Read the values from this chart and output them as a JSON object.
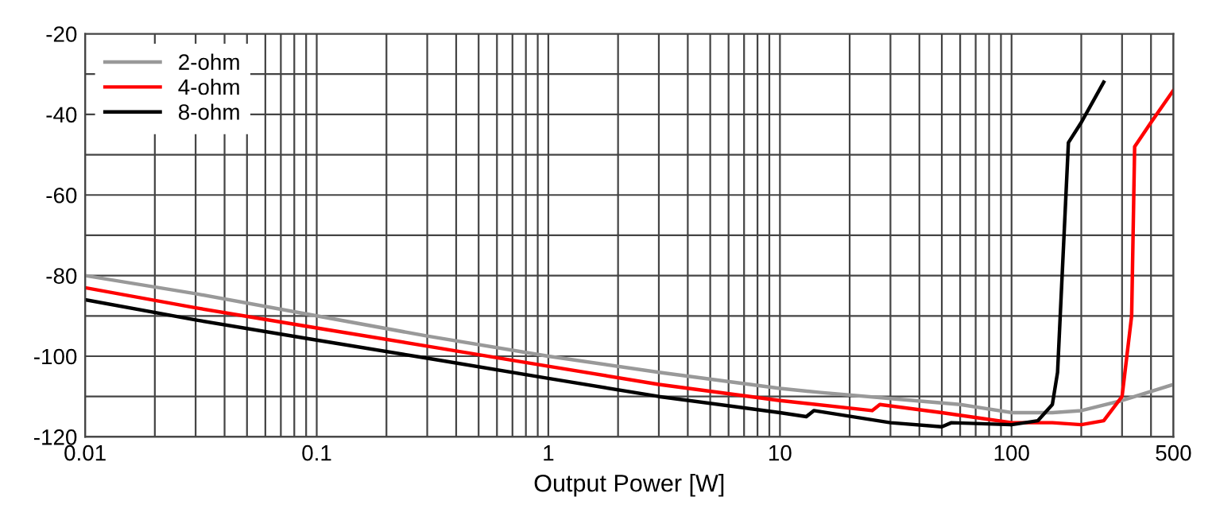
{
  "chart_data": {
    "type": "line",
    "xlabel": "Output Power [W]",
    "log": "x",
    "grid": true,
    "legend": "top left",
    "xlim": [
      0.01,
      500
    ],
    "ylim": [
      -120,
      -20
    ],
    "xticks": [
      0.01,
      {
        "value": 0.02,
        "label": null
      },
      {
        "value": 0.03,
        "label": null
      },
      {
        "value": 0.04,
        "label": null
      },
      {
        "value": 0.05,
        "label": null
      },
      {
        "value": 0.06,
        "label": null
      },
      {
        "value": 0.07,
        "label": null
      },
      {
        "value": 0.08,
        "label": null
      },
      {
        "value": 0.09,
        "label": null
      },
      0.1,
      {
        "value": 0.2,
        "label": null
      },
      {
        "value": 0.3,
        "label": null
      },
      {
        "value": 0.4,
        "label": null
      },
      {
        "value": 0.5,
        "label": null
      },
      {
        "value": 0.6,
        "label": null
      },
      {
        "value": 0.7,
        "label": null
      },
      {
        "value": 0.8,
        "label": null
      },
      {
        "value": 0.9,
        "label": null
      },
      1,
      {
        "value": 2,
        "label": null
      },
      {
        "value": 3,
        "label": null
      },
      {
        "value": 4,
        "label": null
      },
      {
        "value": 5,
        "label": null
      },
      {
        "value": 6,
        "label": null
      },
      {
        "value": 7,
        "label": null
      },
      {
        "value": 8,
        "label": null
      },
      {
        "value": 9,
        "label": null
      },
      10,
      {
        "value": 20,
        "label": null
      },
      {
        "value": 30,
        "label": null
      },
      {
        "value": 40,
        "label": null
      },
      {
        "value": 50,
        "label": null
      },
      {
        "value": 60,
        "label": null
      },
      {
        "value": 70,
        "label": null
      },
      {
        "value": 80,
        "label": null
      },
      {
        "value": 90,
        "label": null
      },
      100,
      {
        "value": 200,
        "label": null
      },
      {
        "value": 300,
        "label": null
      },
      {
        "value": 400,
        "label": null
      },
      500
    ],
    "yticks": [
      -120,
      {
        "value": -110,
        "label": null
      },
      -100,
      {
        "value": -90,
        "label": null
      },
      -80,
      {
        "value": -70,
        "label": null
      },
      -60,
      {
        "value": -50,
        "label": null
      },
      -40,
      {
        "value": -30,
        "label": null
      },
      -20
    ],
    "series": [
      {
        "name": "2-ohm",
        "color": "#999999",
        "x": [
          0.01,
          0.03,
          0.1,
          0.3,
          1,
          3,
          10,
          15,
          30,
          60,
          100,
          150,
          200,
          300,
          500
        ],
        "values": [
          -80,
          -84.5,
          -90,
          -95,
          -100,
          -104,
          -108,
          -109,
          -110.5,
          -112,
          -114,
          -114,
          -113.5,
          -111,
          -107
        ]
      },
      {
        "name": "4-ohm",
        "color": "#ff0000",
        "x": [
          0.01,
          0.03,
          0.1,
          0.3,
          1,
          3,
          10,
          25,
          27,
          50,
          100,
          150,
          200,
          250,
          300,
          330,
          340,
          400,
          500
        ],
        "values": [
          -83,
          -88,
          -93,
          -97.5,
          -102.5,
          -107,
          -111,
          -113.5,
          -112,
          -114,
          -116.5,
          -116.5,
          -117,
          -116,
          -110,
          -90,
          -48,
          -42,
          -34
        ]
      },
      {
        "name": "8-ohm",
        "color": "#000000",
        "x": [
          0.01,
          0.03,
          0.1,
          0.3,
          1,
          3,
          10,
          13,
          14,
          30,
          50,
          55,
          100,
          130,
          150,
          158,
          176,
          200,
          250
        ],
        "values": [
          -86,
          -91,
          -96,
          -100.5,
          -105.5,
          -110,
          -114,
          -115,
          -113.5,
          -116.5,
          -117.5,
          -116.5,
          -117,
          -116,
          -112,
          -104,
          -47,
          -42,
          -32
        ]
      }
    ]
  }
}
